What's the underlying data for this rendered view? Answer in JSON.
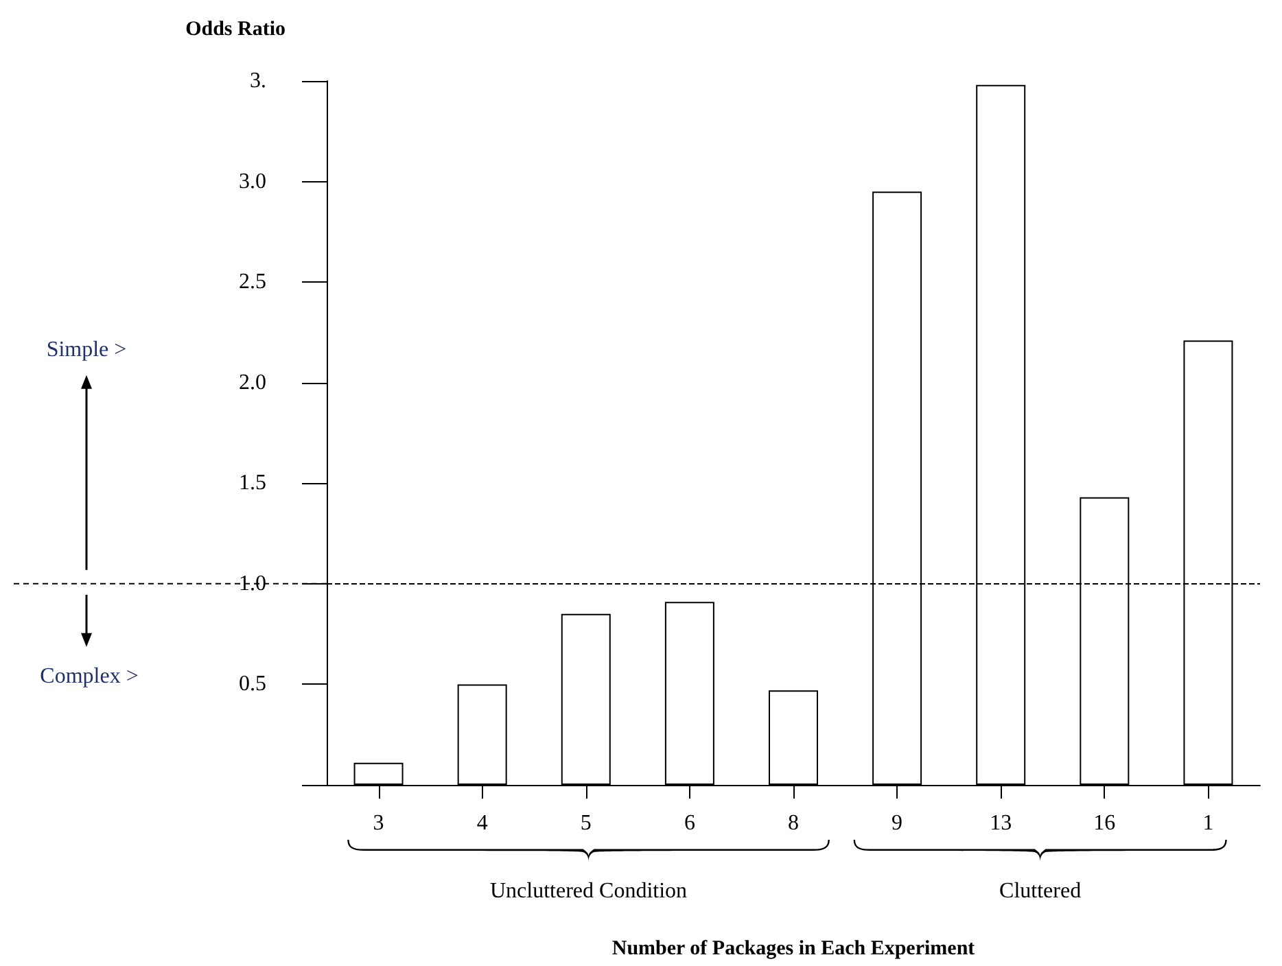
{
  "chart_data": {
    "type": "bar",
    "ylabel": "Odds Ratio",
    "xlabel": "Number of Packages in Each Experiment",
    "categories": [
      "3",
      "4",
      "5",
      "6",
      "8",
      "9",
      "13",
      "16",
      "1"
    ],
    "values": [
      0.11,
      0.5,
      0.85,
      0.91,
      0.47,
      2.95,
      3.48,
      1.43,
      2.21
    ],
    "color": "#ffffff",
    "ylim": [
      0,
      3.5
    ],
    "yticks": [
      {
        "value": 0,
        "label": null
      },
      0.5,
      {
        "value": 1,
        "label": "1.0"
      },
      1.5,
      {
        "value": 2,
        "label": "2.0"
      },
      2.5,
      {
        "value": 3,
        "label": "3.0"
      },
      {
        "value": 3.5,
        "label": "3."
      }
    ],
    "grid": false,
    "ref_lines": [
      {
        "axis": "y",
        "value": 1,
        "line_style": "dashed",
        "color": "#000000"
      }
    ],
    "annotations": [
      "Uncluttered Condition",
      "Cluttered",
      "Simple >",
      "Complex >"
    ]
  }
}
